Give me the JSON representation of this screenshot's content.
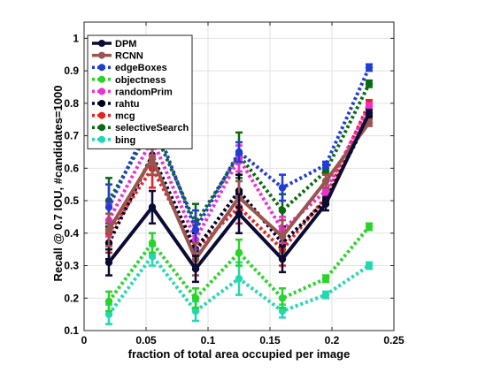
{
  "chart_data": {
    "type": "line",
    "xlabel": "fraction of total area occupied per image",
    "ylabel": "Recall @ 0.7 IOU, #candidates=1000",
    "xlim": [
      0,
      0.25
    ],
    "ylim": [
      0.1,
      1.05
    ],
    "xticks": [
      0,
      0.05,
      0.1,
      0.15,
      0.2,
      0.25
    ],
    "xtick_labels": [
      "0",
      "0.05",
      "0.1",
      "0.15",
      "0.2",
      "0.25"
    ],
    "yticks": [
      0.1,
      0.2,
      0.3,
      0.4,
      0.5,
      0.6,
      0.7,
      0.8,
      0.9,
      1.0
    ],
    "ytick_labels": [
      "0.1",
      "0.2",
      "0.3",
      "0.4",
      "0.5",
      "0.6",
      "0.7",
      "0.8",
      "0.9",
      "1"
    ],
    "grid": true,
    "legend_position": "top-left",
    "x": [
      0.02,
      0.055,
      0.09,
      0.125,
      0.16,
      0.195,
      0.23
    ],
    "series": [
      {
        "name": "DPM",
        "color": "#0b0b33",
        "style": "solid",
        "values": [
          0.31,
          0.48,
          0.29,
          0.46,
          0.32,
          0.49,
          0.77
        ],
        "err": [
          0.04,
          0.05,
          0.04,
          0.06,
          0.04,
          0.02,
          0.01
        ]
      },
      {
        "name": "RCNN",
        "color": "#9a5550",
        "style": "solid",
        "values": [
          0.41,
          0.63,
          0.32,
          0.51,
          0.39,
          0.56,
          0.74
        ],
        "err": [
          0.05,
          0.05,
          0.05,
          0.05,
          0.05,
          0.02,
          0.01
        ]
      },
      {
        "name": "edgeBoxes",
        "color": "#1f3dd6",
        "style": "dotted",
        "values": [
          0.48,
          0.76,
          0.41,
          0.65,
          0.54,
          0.61,
          0.91
        ],
        "err": [
          0.07,
          0.04,
          0.06,
          0.03,
          0.04,
          0.01,
          0.01
        ]
      },
      {
        "name": "objectness",
        "color": "#28d428",
        "style": "dotted",
        "values": [
          0.19,
          0.37,
          0.2,
          0.34,
          0.2,
          0.26,
          0.42
        ],
        "err": [
          0.03,
          0.03,
          0.03,
          0.04,
          0.03,
          0.01,
          0.01
        ]
      },
      {
        "name": "randomPrim",
        "color": "#ee2fd0",
        "style": "dotted",
        "values": [
          0.44,
          0.69,
          0.38,
          0.63,
          0.41,
          0.53,
          0.79
        ],
        "err": [
          0.05,
          0.05,
          0.05,
          0.04,
          0.04,
          0.01,
          0.01
        ]
      },
      {
        "name": "rahtu",
        "color": "#000022",
        "style": "dotted",
        "values": [
          0.37,
          0.64,
          0.35,
          0.53,
          0.37,
          0.5,
          0.76
        ],
        "err": [
          0.05,
          0.06,
          0.05,
          0.05,
          0.05,
          0.01,
          0.01
        ]
      },
      {
        "name": "mcg",
        "color": "#e82222",
        "style": "dotted",
        "values": [
          0.4,
          0.6,
          0.35,
          0.48,
          0.35,
          0.51,
          0.8
        ],
        "err": [
          0.06,
          0.06,
          0.05,
          0.05,
          0.05,
          0.01,
          0.01
        ]
      },
      {
        "name": "selectiveSearch",
        "color": "#0a6a12",
        "style": "dotted",
        "values": [
          0.5,
          0.73,
          0.43,
          0.64,
          0.47,
          0.59,
          0.86
        ],
        "err": [
          0.07,
          0.07,
          0.06,
          0.07,
          0.05,
          0.01,
          0.01
        ]
      },
      {
        "name": "bing",
        "color": "#22d8b0",
        "style": "dotted",
        "values": [
          0.15,
          0.33,
          0.16,
          0.26,
          0.16,
          0.21,
          0.3
        ],
        "err": [
          0.03,
          0.03,
          0.03,
          0.05,
          0.02,
          0.01,
          0.01
        ]
      }
    ]
  }
}
